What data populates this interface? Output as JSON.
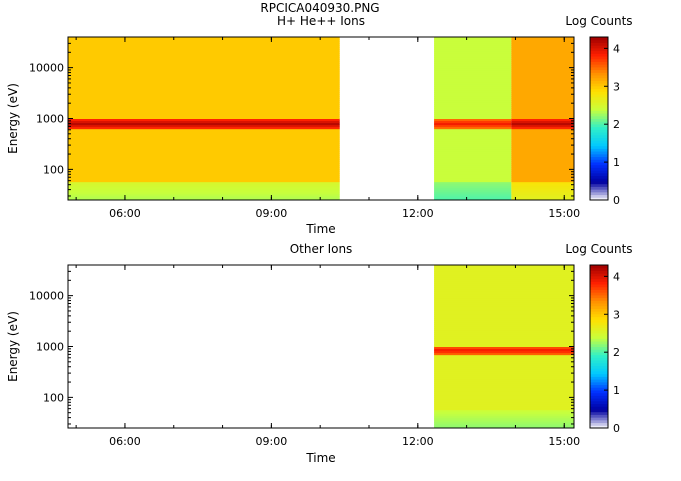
{
  "figure_title": "RPCICA040930.PNG",
  "chart_data": [
    {
      "type": "heatmap",
      "title": "H+ He++ Ions",
      "xlabel": "Time",
      "ylabel": "Energy (eV)",
      "x_scale": "time",
      "y_scale": "log",
      "xlim": [
        "04:50",
        "15:12"
      ],
      "ylim": [
        25,
        40000
      ],
      "x_ticks": [
        "06:00",
        "09:00",
        "12:00",
        "15:00"
      ],
      "y_ticks": [
        "100",
        "1000",
        "10000"
      ],
      "colorbar": {
        "label": "Log Counts",
        "range": [
          0,
          4.3
        ],
        "ticks": [
          "0",
          "1",
          "2",
          "3",
          "4"
        ],
        "colormap": [
          "#ffffff",
          "#0000a0",
          "#0030ff",
          "#00c8ff",
          "#30f0c8",
          "#c8ff3c",
          "#ffe000",
          "#ff9000",
          "#ff2000",
          "#a00000"
        ]
      },
      "data_intervals": [
        {
          "start": "04:50",
          "end": "10:24",
          "background_log_counts": 3.0,
          "peak_energy_eV": 800,
          "peak_log_counts": 4.2,
          "low_energy_below_eV": 60,
          "low_energy_log_counts": 2.3
        },
        {
          "start": "12:20",
          "end": "13:55",
          "background_log_counts": 2.4,
          "peak_energy_eV": 800,
          "peak_log_counts": 3.9,
          "low_energy_below_eV": 60,
          "low_energy_log_counts": 2.0
        },
        {
          "start": "13:55",
          "end": "15:12",
          "background_log_counts": 3.2,
          "peak_energy_eV": 800,
          "peak_log_counts": 4.2,
          "low_energy_below_eV": 60,
          "low_energy_log_counts": 2.6
        }
      ],
      "data_gap": [
        "10:24",
        "12:20"
      ]
    },
    {
      "type": "heatmap",
      "title": "Other Ions",
      "xlabel": "Time",
      "ylabel": "Energy (eV)",
      "x_scale": "time",
      "y_scale": "log",
      "xlim": [
        "04:50",
        "15:12"
      ],
      "ylim": [
        25,
        40000
      ],
      "x_ticks": [
        "06:00",
        "09:00",
        "12:00",
        "15:00"
      ],
      "y_ticks": [
        "100",
        "1000",
        "10000"
      ],
      "colorbar": {
        "label": "Log Counts",
        "range": [
          0,
          4.3
        ],
        "ticks": [
          "0",
          "1",
          "2",
          "3",
          "4"
        ],
        "colormap": [
          "#ffffff",
          "#0000a0",
          "#0030ff",
          "#00c8ff",
          "#30f0c8",
          "#c8ff3c",
          "#ffe000",
          "#ff9000",
          "#ff2000",
          "#a00000"
        ]
      },
      "data_intervals": [
        {
          "start": "12:20",
          "end": "15:12",
          "background_log_counts": 2.6,
          "peak_energy_eV": 850,
          "peak_log_counts": 3.9,
          "low_energy_below_eV": 60,
          "low_energy_log_counts": 2.2
        }
      ],
      "data_gap": [
        "04:50",
        "12:20"
      ]
    }
  ]
}
